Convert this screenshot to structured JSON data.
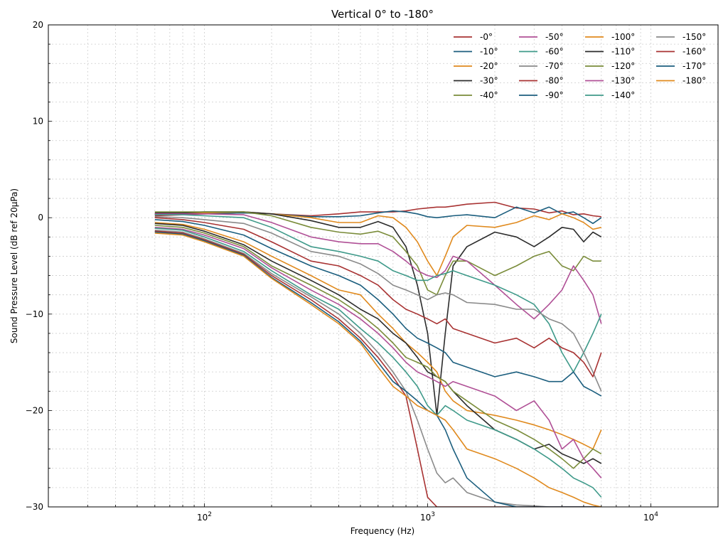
{
  "chart_data": {
    "type": "line",
    "title": "Vertical 0° to -180°",
    "xlabel": "Frequency (Hz)",
    "ylabel": "Sound Pressure Level (dB ref 20µPa)",
    "xscale": "log",
    "xlim": [
      20,
      20000
    ],
    "ylim": [
      -30,
      20
    ],
    "yticks": [
      -30,
      -20,
      -10,
      0,
      10,
      20
    ],
    "xticks": [
      {
        "value": 100,
        "label": "10",
        "exp": "2"
      },
      {
        "value": 1000,
        "label": "10",
        "exp": "3"
      },
      {
        "value": 10000,
        "label": "10",
        "exp": "4"
      }
    ],
    "grid": true,
    "legend_position": "top-right",
    "x": [
      60,
      80,
      100,
      150,
      200,
      300,
      400,
      500,
      600,
      700,
      800,
      900,
      1000,
      1100,
      1200,
      1300,
      1500,
      2000,
      2500,
      3000,
      3500,
      4000,
      4500,
      5000,
      5500,
      6000
    ],
    "series": [
      {
        "name": "-0°",
        "color": "#a83232",
        "values": [
          0.2,
          0.3,
          0.4,
          0.5,
          0.4,
          0.2,
          0.4,
          0.6,
          0.6,
          0.6,
          0.7,
          0.9,
          1.0,
          1.1,
          1.1,
          1.2,
          1.4,
          1.6,
          1.0,
          0.9,
          0.5,
          0.7,
          0.3,
          0.4,
          0.2,
          0.1
        ]
      },
      {
        "name": "-10°",
        "color": "#1b5e7e",
        "values": [
          0.3,
          0.4,
          0.4,
          0.5,
          0.4,
          0.1,
          0.1,
          0.2,
          0.5,
          0.7,
          0.6,
          0.4,
          0.1,
          0.0,
          0.1,
          0.2,
          0.3,
          0.0,
          1.1,
          0.5,
          1.1,
          0.4,
          0.6,
          0.0,
          -0.6,
          0.0
        ]
      },
      {
        "name": "-20°",
        "color": "#e08a1e",
        "values": [
          0.4,
          0.5,
          0.5,
          0.6,
          0.4,
          0.0,
          -0.5,
          -0.5,
          0.2,
          0.0,
          -1.0,
          -2.5,
          -4.5,
          -6.0,
          -4.0,
          -2.0,
          -0.8,
          -1.0,
          -0.5,
          0.2,
          -0.2,
          0.4,
          0.0,
          -0.5,
          -1.2,
          -1.0
        ]
      },
      {
        "name": "-30°",
        "color": "#2b2b2b",
        "values": [
          0.5,
          0.5,
          0.6,
          0.6,
          0.4,
          -0.3,
          -1.0,
          -1.0,
          -0.4,
          -1.0,
          -3.0,
          -7.0,
          -12.0,
          -20.5,
          -12.0,
          -5.0,
          -3.0,
          -1.5,
          -2.0,
          -3.0,
          -2.0,
          -1.0,
          -1.2,
          -2.5,
          -1.5,
          -2.0
        ]
      },
      {
        "name": "-40°",
        "color": "#7a8c3a",
        "values": [
          0.6,
          0.6,
          0.6,
          0.6,
          0.2,
          -1.0,
          -1.5,
          -1.7,
          -1.4,
          -2.0,
          -3.5,
          -5.0,
          -7.5,
          -8.0,
          -6.0,
          -4.5,
          -4.5,
          -6.0,
          -5.0,
          -4.0,
          -3.5,
          -5.0,
          -5.5,
          -4.0,
          -4.5,
          -4.5
        ]
      },
      {
        "name": "-50°",
        "color": "#b05096",
        "values": [
          0.4,
          0.4,
          0.4,
          0.3,
          -0.5,
          -2.0,
          -2.5,
          -2.7,
          -2.7,
          -3.5,
          -4.5,
          -5.5,
          -6.0,
          -6.2,
          -5.5,
          -4.0,
          -4.5,
          -7.0,
          -9.0,
          -10.5,
          -9.0,
          -7.5,
          -5.0,
          -6.5,
          -8.0,
          -11.0
        ]
      },
      {
        "name": "-60°",
        "color": "#3f9a8a",
        "values": [
          0.3,
          0.3,
          0.2,
          0.0,
          -1.0,
          -3.0,
          -3.5,
          -4.0,
          -4.5,
          -5.5,
          -6.0,
          -6.5,
          -6.5,
          -6.0,
          -5.8,
          -5.5,
          -6.0,
          -7.0,
          -8.0,
          -9.0,
          -11.0,
          -14.0,
          -16.0,
          -14.0,
          -12.0,
          -10.0
        ]
      },
      {
        "name": "-70°",
        "color": "#8a8a8a",
        "values": [
          0.1,
          0.0,
          -0.2,
          -0.6,
          -1.6,
          -3.5,
          -4.0,
          -4.8,
          -5.8,
          -7.0,
          -7.5,
          -8.0,
          -8.5,
          -8.0,
          -7.8,
          -8.0,
          -8.8,
          -9.0,
          -9.5,
          -9.5,
          -10.5,
          -11.0,
          -12.0,
          -14.0,
          -16.0,
          -18.0
        ]
      },
      {
        "name": "-80°",
        "color": "#a83232",
        "values": [
          0.0,
          -0.2,
          -0.5,
          -1.2,
          -2.5,
          -4.5,
          -5.0,
          -6.0,
          -7.0,
          -8.5,
          -9.5,
          -10.0,
          -10.5,
          -11.0,
          -10.5,
          -11.5,
          -12.0,
          -13.0,
          -12.5,
          -13.5,
          -12.5,
          -13.5,
          -14.0,
          -15.0,
          -16.5,
          -14.0
        ]
      },
      {
        "name": "-90°",
        "color": "#1b5e7e",
        "values": [
          -0.2,
          -0.4,
          -0.8,
          -1.8,
          -3.2,
          -5.0,
          -6.0,
          -7.0,
          -8.5,
          -10.0,
          -11.5,
          -12.5,
          -13.0,
          -13.5,
          -14.0,
          -15.0,
          -15.5,
          -16.5,
          -16.0,
          -16.5,
          -17.0,
          -17.0,
          -16.0,
          -17.5,
          -18.0,
          -18.5
        ]
      },
      {
        "name": "-100°",
        "color": "#e08a1e",
        "values": [
          -0.5,
          -0.7,
          -1.2,
          -2.5,
          -4.0,
          -6.0,
          -7.5,
          -8.0,
          -10.0,
          -11.5,
          -13.0,
          -14.0,
          -15.0,
          -16.0,
          -18.0,
          -19.0,
          -20.0,
          -20.5,
          -21.0,
          -21.5,
          -22.0,
          -22.5,
          -23.0,
          -23.5,
          -24.0,
          -22.0
        ]
      },
      {
        "name": "-110°",
        "color": "#2b2b2b",
        "values": [
          -0.6,
          -0.8,
          -1.4,
          -2.8,
          -4.5,
          -6.5,
          -8.0,
          -9.5,
          -10.5,
          -12.0,
          -13.0,
          -14.5,
          -16.0,
          -16.5,
          -17.0,
          -18.0,
          -19.5,
          -22.0,
          -23.0,
          -24.0,
          -23.5,
          -24.5,
          -25.0,
          -25.5,
          -25.0,
          -25.5
        ]
      },
      {
        "name": "-120°",
        "color": "#7a8c3a",
        "values": [
          -0.8,
          -1.0,
          -1.6,
          -3.0,
          -5.0,
          -7.0,
          -8.5,
          -10.0,
          -11.5,
          -13.0,
          -14.5,
          -15.0,
          -15.5,
          -16.5,
          -17.0,
          -18.0,
          -19.0,
          -21.0,
          -22.0,
          -23.0,
          -24.0,
          -25.0,
          -26.0,
          -25.0,
          -24.0,
          -24.5
        ]
      },
      {
        "name": "-130°",
        "color": "#b05096",
        "values": [
          -1.0,
          -1.2,
          -1.8,
          -3.2,
          -5.2,
          -7.5,
          -9.0,
          -10.5,
          -12.0,
          -13.5,
          -15.0,
          -16.0,
          -16.5,
          -17.0,
          -17.5,
          -17.0,
          -17.5,
          -18.5,
          -20.0,
          -19.0,
          -21.0,
          -24.0,
          -23.0,
          -25.0,
          -26.0,
          -27.0
        ]
      },
      {
        "name": "-140°",
        "color": "#3f9a8a",
        "values": [
          -1.1,
          -1.3,
          -2.0,
          -3.5,
          -5.5,
          -8.0,
          -9.5,
          -11.5,
          -13.0,
          -14.5,
          -16.0,
          -17.5,
          -19.5,
          -20.5,
          -19.5,
          -20.0,
          -21.0,
          -22.0,
          -23.0,
          -24.0,
          -25.0,
          -26.0,
          -27.0,
          -27.5,
          -28.0,
          -29.0
        ]
      },
      {
        "name": "-150°",
        "color": "#8a8a8a",
        "values": [
          -1.3,
          -1.5,
          -2.2,
          -3.7,
          -5.8,
          -8.2,
          -10.0,
          -12.0,
          -14.0,
          -16.0,
          -18.0,
          -21.0,
          -24.0,
          -26.5,
          -27.5,
          -27.0,
          -28.5,
          -29.5,
          -29.8,
          -29.9,
          -30.0,
          -30.0,
          -30.0,
          -30.0,
          -30.0,
          -30.0
        ]
      },
      {
        "name": "-160°",
        "color": "#a83232",
        "values": [
          -1.4,
          -1.6,
          -2.3,
          -3.8,
          -6.0,
          -8.5,
          -10.5,
          -12.5,
          -14.5,
          -16.5,
          -18.5,
          -24.0,
          -29.0,
          -30.0,
          -30.0,
          -30.0,
          -30.0,
          -30.0,
          -30.0,
          -30.0,
          -30.0,
          -30.0,
          -30.0,
          -30.0,
          -30.0,
          -30.0
        ]
      },
      {
        "name": "-170°",
        "color": "#1b5e7e",
        "values": [
          -1.5,
          -1.7,
          -2.4,
          -3.9,
          -6.2,
          -8.8,
          -10.8,
          -12.8,
          -15.0,
          -17.0,
          -18.0,
          -19.0,
          -20.0,
          -20.5,
          -22.0,
          -24.0,
          -27.0,
          -29.5,
          -30.0,
          -30.0,
          -30.0,
          -30.0,
          -30.0,
          -30.0,
          -30.0,
          -30.0
        ]
      },
      {
        "name": "-180°",
        "color": "#e08a1e",
        "values": [
          -1.6,
          -1.8,
          -2.5,
          -4.0,
          -6.3,
          -9.0,
          -11.0,
          -13.0,
          -15.5,
          -17.5,
          -18.5,
          -19.5,
          -20.0,
          -20.5,
          -21.0,
          -22.0,
          -24.0,
          -25.0,
          -26.0,
          -27.0,
          -28.0,
          -28.5,
          -29.0,
          -29.5,
          -29.8,
          -30.0
        ]
      }
    ]
  }
}
